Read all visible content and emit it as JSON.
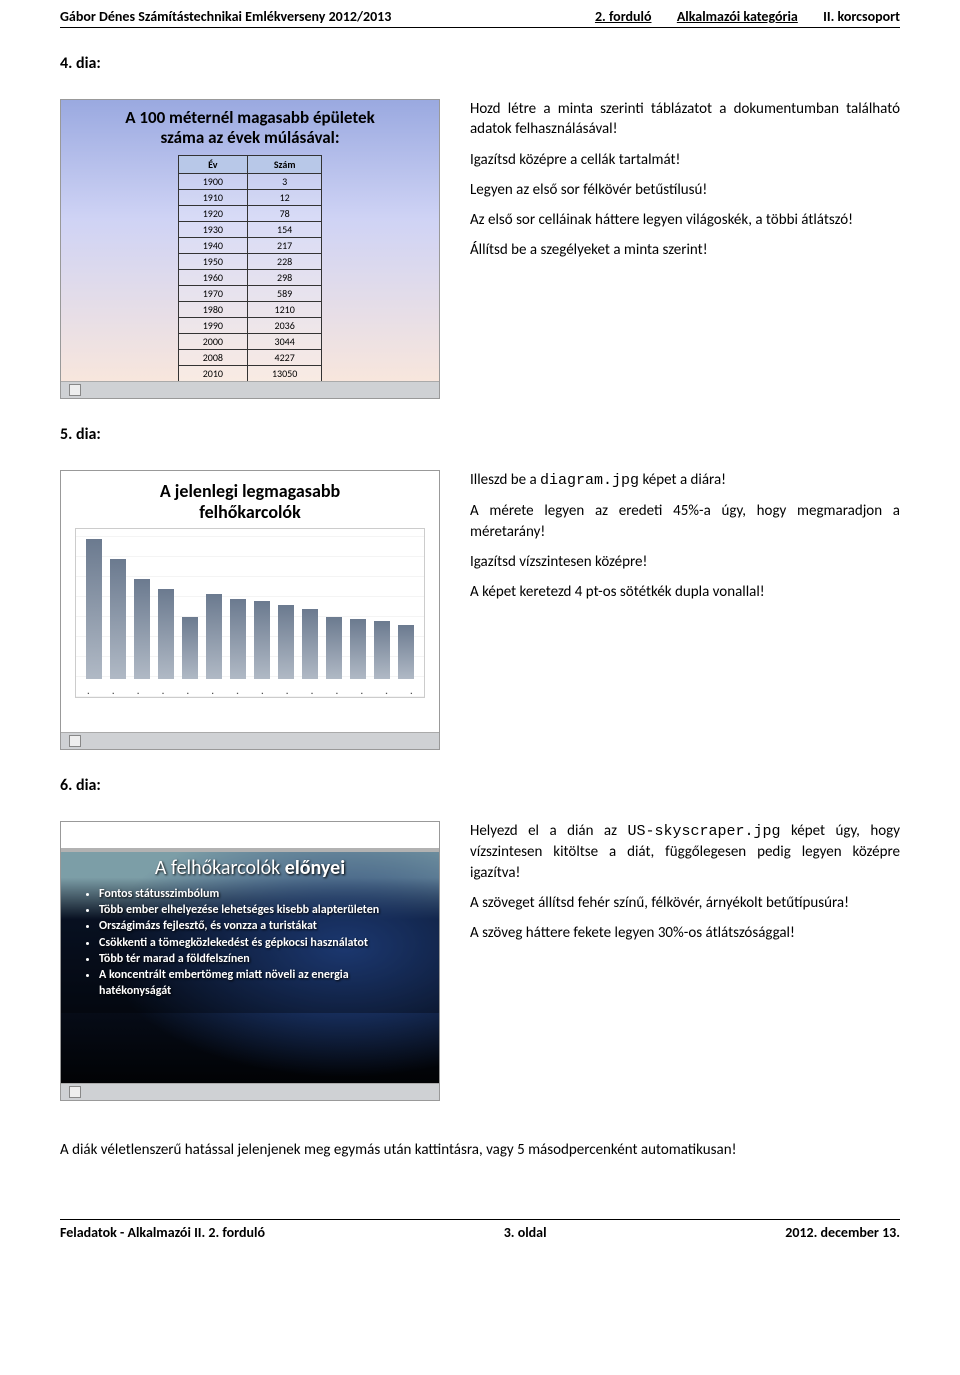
{
  "header": {
    "left": "Gábor Dénes Számítástechnikai Emlékverseny 2012/2013",
    "mid": "2. forduló",
    "right1": "Alkalmazói kategória",
    "right2": "II. korcsoport"
  },
  "footer": {
    "left": "Feladatok - Alkalmazói II. 2. forduló",
    "mid": "3. oldal",
    "right": "2012. december 13."
  },
  "dia4": {
    "label": "4. dia:",
    "slide_title_l1": "A 100 méternél magasabb épületek",
    "slide_title_l2": "száma az évek múlásával:",
    "table": {
      "head": [
        "Év",
        "Szám"
      ],
      "rows": [
        [
          "1900",
          "3"
        ],
        [
          "1910",
          "12"
        ],
        [
          "1920",
          "78"
        ],
        [
          "1930",
          "154"
        ],
        [
          "1940",
          "217"
        ],
        [
          "1950",
          "228"
        ],
        [
          "1960",
          "298"
        ],
        [
          "1970",
          "589"
        ],
        [
          "1980",
          "1210"
        ],
        [
          "1990",
          "2036"
        ],
        [
          "2000",
          "3044"
        ],
        [
          "2008",
          "4227"
        ],
        [
          "2010",
          "13050"
        ]
      ]
    },
    "p1": "Hozd létre a minta szerinti táblázatot a dokumentumban található adatok felhasználásával!",
    "p2": "Igazítsd középre a cellák tartalmát!",
    "p3": "Legyen az első sor félkövér betűstílusú!",
    "p4": "Az első sor celláinak háttere legyen világoskék, a többi átlátszó!",
    "p5": "Állítsd be a szegélyeket a minta szerint!"
  },
  "dia5": {
    "label": "5. dia:",
    "slide_title_l1": "A jelenlegi legmagasabb",
    "slide_title_l2": "felhőkarcolók",
    "p1a": "Illeszd be a ",
    "p1m": "diagram.jpg",
    "p1b": " képet a diára!",
    "p2": "A mérete legyen az eredeti 45%-a úgy, hogy megmaradjon a méretarány!",
    "p3": "Igazítsd vízszintesen középre!",
    "p4": "A képet keretezd 4 pt-os sötétkék dupla vonallal!",
    "bars": [
      140,
      120,
      100,
      90,
      62,
      85,
      80,
      78,
      74,
      70,
      62,
      60,
      58,
      54
    ]
  },
  "dia6": {
    "label": "6. dia:",
    "slide_title": "A felhőkarcolók ",
    "slide_title_b": "előnyei",
    "bullets": [
      "Fontos státusszimbólum",
      "Több ember elhelyezése lehetséges kisebb alapterületen",
      "Országimázs fejlesztő, és vonzza a turistákat",
      "Csökkenti a tömegközlekedést és gépkocsi használatot",
      "Több tér marad a földfelszínen",
      "A koncentrált embertömeg miatt növeli az energia hatékonyságát"
    ],
    "p1a": "Helyezd el a dián az ",
    "p1m": "US-skyscraper.jpg",
    "p1b": " képet úgy, hogy vízszintesen kitöltse a diát, függőlegesen pedig legyen középre igazítva!",
    "p2": "A szöveget állítsd fehér színű, félkövér, árnyékolt betűtípusúra!",
    "p3": "A szöveg háttere fekete legyen 30%-os átlátszósággal!"
  },
  "final": "A diák véletlenszerű hatással jelenjenek meg egymás után kattintásra, vagy 5 másodpercenként automatikusan!"
}
